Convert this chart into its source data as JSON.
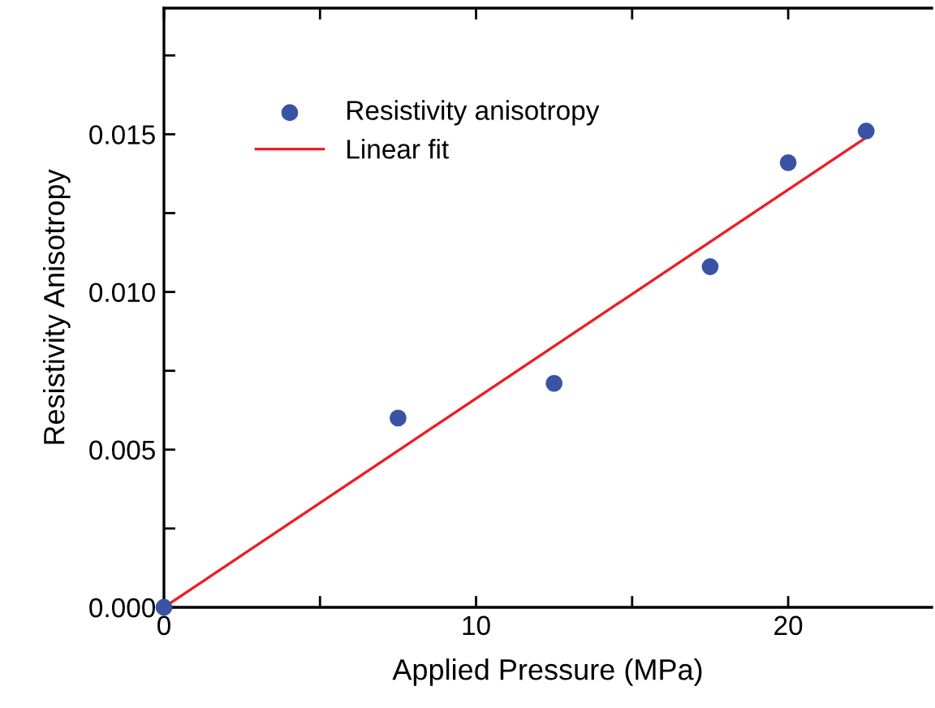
{
  "chart_data": {
    "type": "scatter",
    "xlabel": "Applied Pressure (MPa)",
    "ylabel": "Resistivity Anisotropy",
    "x": [
      0,
      7.5,
      12.5,
      17.5,
      20,
      22.5
    ],
    "series": [
      {
        "name": "Resistivity anisotropy",
        "color": "#3a53a4",
        "marker": "circle",
        "values": [
          0,
          0.006,
          0.0071,
          0.0108,
          0.0141,
          0.0151
        ]
      },
      {
        "name": "Linear fit",
        "type": "line",
        "color": "#ee1c25",
        "marker": "none",
        "line_style": "solid",
        "x": [
          0,
          22.5
        ],
        "values": [
          0,
          0.0149
        ]
      }
    ],
    "xlim": [
      0,
      24.6
    ],
    "ylim": [
      0,
      0.019
    ],
    "xticks": [
      0,
      {
        "value": 5,
        "label": null
      },
      10,
      {
        "value": 15,
        "label": null
      },
      20
    ],
    "yticks": [
      {
        "value": 0,
        "label": "0.000"
      },
      {
        "value": 0.0025,
        "label": null
      },
      {
        "value": 0.005,
        "label": "0.005"
      },
      {
        "value": 0.0075,
        "label": null
      },
      {
        "value": 0.01,
        "label": "0.010"
      },
      {
        "value": 0.0125,
        "label": null
      },
      {
        "value": 0.015,
        "label": "0.015"
      },
      {
        "value": 0.0175,
        "label": null
      }
    ],
    "legend": "top left",
    "grid": false
  }
}
